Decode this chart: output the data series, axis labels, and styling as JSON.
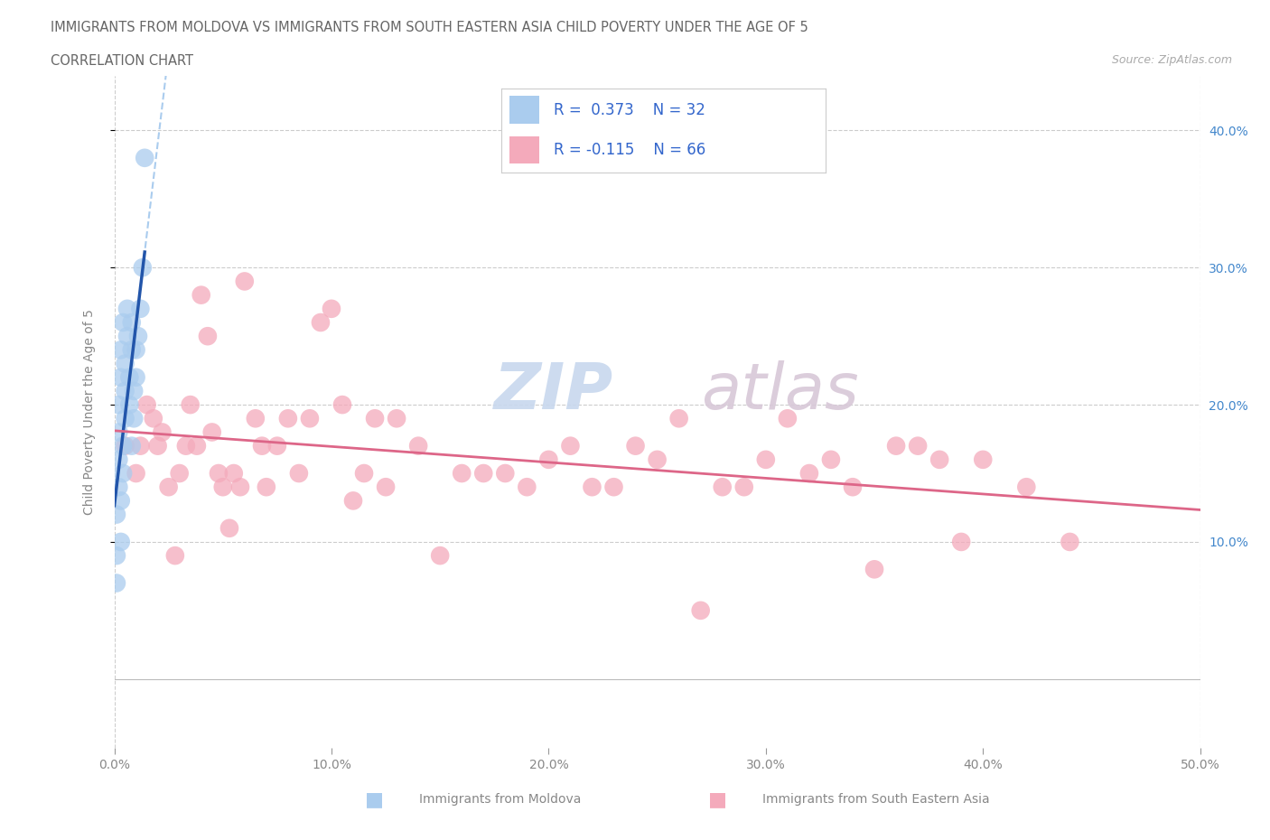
{
  "title": "IMMIGRANTS FROM MOLDOVA VS IMMIGRANTS FROM SOUTH EASTERN ASIA CHILD POVERTY UNDER THE AGE OF 5",
  "subtitle": "CORRELATION CHART",
  "source": "Source: ZipAtlas.com",
  "ylabel": "Child Poverty Under the Age of 5",
  "xlim": [
    0.0,
    0.5
  ],
  "ylim": [
    -0.05,
    0.44
  ],
  "xtick_vals": [
    0.0,
    0.1,
    0.2,
    0.3,
    0.4,
    0.5
  ],
  "xticklabels": [
    "0.0%",
    "10.0%",
    "20.0%",
    "30.0%",
    "40.0%",
    "50.0%"
  ],
  "ytick_vals": [
    0.1,
    0.2,
    0.3,
    0.4
  ],
  "yticklabels_right": [
    "10.0%",
    "20.0%",
    "30.0%",
    "40.0%"
  ],
  "moldova_color": "#aaccee",
  "moldova_edge": "#88aadd",
  "sea_color": "#f4aabb",
  "sea_edge": "#e888aa",
  "line_moldova_color": "#2255aa",
  "line_sea_color": "#dd6688",
  "line_moldova_dash_color": "#aaccee",
  "moldova_R": "0.373",
  "moldova_N": "32",
  "sea_R": "-0.115",
  "sea_N": "66",
  "legend_label_1": "Immigrants from Moldova",
  "legend_label_2": "Immigrants from South Eastern Asia",
  "watermark_zip": "ZIP",
  "watermark_atlas": "atlas",
  "moldova_x": [
    0.001,
    0.001,
    0.001,
    0.002,
    0.002,
    0.002,
    0.002,
    0.003,
    0.003,
    0.003,
    0.003,
    0.004,
    0.004,
    0.004,
    0.005,
    0.005,
    0.005,
    0.006,
    0.006,
    0.007,
    0.007,
    0.008,
    0.008,
    0.008,
    0.009,
    0.009,
    0.01,
    0.01,
    0.011,
    0.012,
    0.013,
    0.014
  ],
  "moldova_y": [
    0.07,
    0.09,
    0.12,
    0.14,
    0.16,
    0.18,
    0.2,
    0.22,
    0.24,
    0.1,
    0.13,
    0.15,
    0.17,
    0.26,
    0.19,
    0.21,
    0.23,
    0.25,
    0.27,
    0.2,
    0.22,
    0.24,
    0.26,
    0.17,
    0.19,
    0.21,
    0.22,
    0.24,
    0.25,
    0.27,
    0.3,
    0.38
  ],
  "sea_x": [
    0.005,
    0.01,
    0.012,
    0.015,
    0.018,
    0.02,
    0.022,
    0.025,
    0.028,
    0.03,
    0.033,
    0.035,
    0.038,
    0.04,
    0.043,
    0.045,
    0.048,
    0.05,
    0.053,
    0.055,
    0.058,
    0.06,
    0.065,
    0.068,
    0.07,
    0.075,
    0.08,
    0.085,
    0.09,
    0.095,
    0.1,
    0.105,
    0.11,
    0.115,
    0.12,
    0.125,
    0.13,
    0.14,
    0.15,
    0.16,
    0.17,
    0.18,
    0.19,
    0.2,
    0.21,
    0.22,
    0.23,
    0.24,
    0.25,
    0.26,
    0.27,
    0.28,
    0.29,
    0.3,
    0.31,
    0.32,
    0.33,
    0.34,
    0.35,
    0.36,
    0.37,
    0.38,
    0.39,
    0.4,
    0.42,
    0.44
  ],
  "sea_y": [
    0.17,
    0.15,
    0.17,
    0.2,
    0.19,
    0.17,
    0.18,
    0.14,
    0.09,
    0.15,
    0.17,
    0.2,
    0.17,
    0.28,
    0.25,
    0.18,
    0.15,
    0.14,
    0.11,
    0.15,
    0.14,
    0.29,
    0.19,
    0.17,
    0.14,
    0.17,
    0.19,
    0.15,
    0.19,
    0.26,
    0.27,
    0.2,
    0.13,
    0.15,
    0.19,
    0.14,
    0.19,
    0.17,
    0.09,
    0.15,
    0.15,
    0.15,
    0.14,
    0.16,
    0.17,
    0.14,
    0.14,
    0.17,
    0.16,
    0.19,
    0.05,
    0.14,
    0.14,
    0.16,
    0.19,
    0.15,
    0.16,
    0.14,
    0.08,
    0.17,
    0.17,
    0.16,
    0.1,
    0.16,
    0.14,
    0.1
  ]
}
